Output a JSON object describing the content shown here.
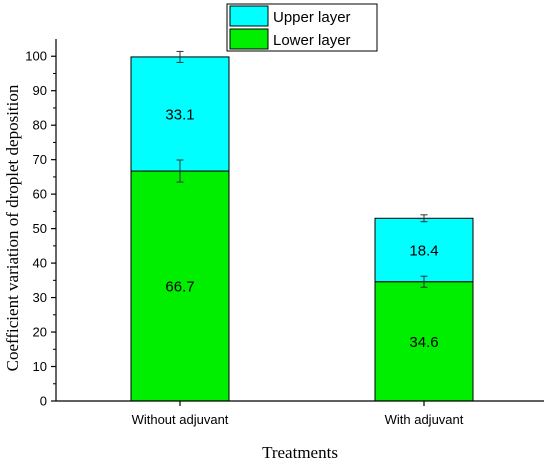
{
  "chart_data": {
    "type": "bar",
    "stacked": true,
    "categories": [
      "Without adjuvant",
      "With adjuvant"
    ],
    "series": [
      {
        "name": "Lower layer",
        "values": [
          66.7,
          34.6
        ],
        "errors": [
          3.2,
          1.6
        ],
        "color": "#00ee00"
      },
      {
        "name": "Upper layer",
        "values": [
          33.1,
          18.4
        ],
        "errors": [
          1.6,
          1.0
        ],
        "color": "#00ffff"
      }
    ],
    "xlabel": "Treatments",
    "ylabel": "Coefficient variation of droplet deposition",
    "ylim": [
      0,
      105
    ],
    "yticks": [
      0,
      10,
      20,
      30,
      40,
      50,
      60,
      70,
      80,
      90,
      100
    ],
    "legend_position": "top-center",
    "grid": false
  }
}
